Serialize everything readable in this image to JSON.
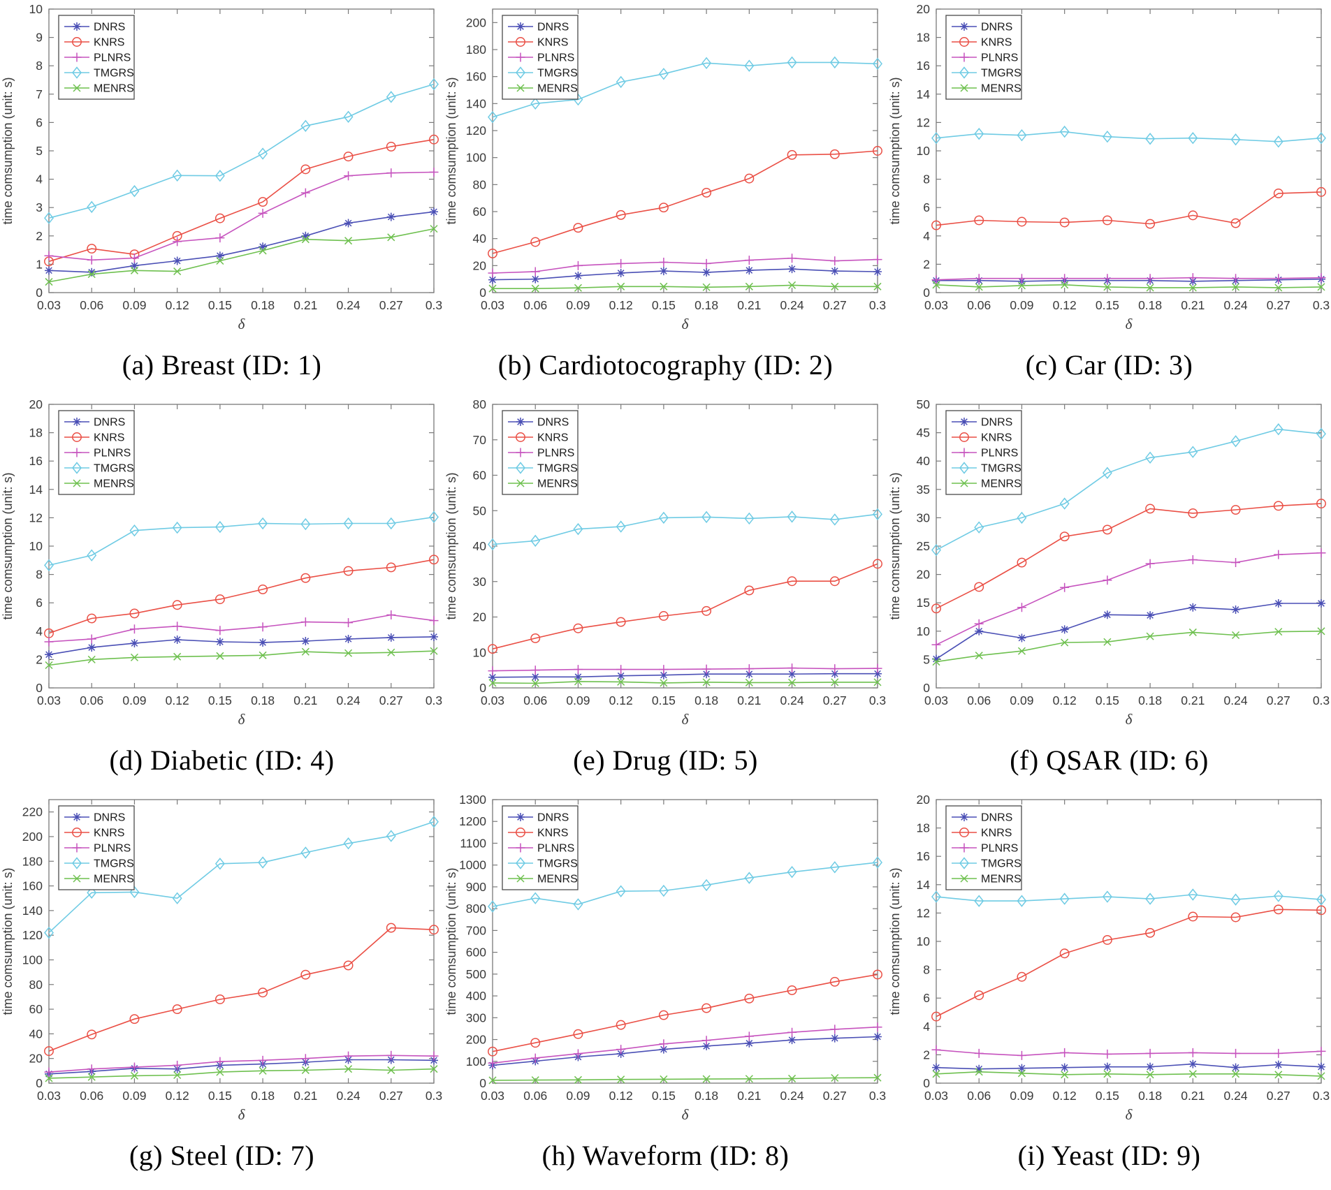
{
  "figure": {
    "xlabel": "δ",
    "ylabel": "time comsumption (unit: s)",
    "x": [
      0.03,
      0.06,
      0.09,
      0.12,
      0.15,
      0.18,
      0.21,
      0.24,
      0.27,
      0.3
    ],
    "x_ticklabels": [
      "0.03",
      "0.06",
      "0.09",
      "0.12",
      "0.15",
      "0.18",
      "0.21",
      "0.24",
      "0.27",
      "0.3"
    ],
    "legend": [
      "DNRS",
      "KNRS",
      "PLNRS",
      "TMGRS",
      "MENRS"
    ],
    "legend_position": "top-left",
    "colors": {
      "DNRS": "#4a4fb5",
      "KNRS": "#ea4f45",
      "PLNRS": "#c653be",
      "TMGRS": "#6fcbe4",
      "MENRS": "#6ec04f"
    },
    "markers": {
      "DNRS": "asterisk",
      "KNRS": "circle",
      "PLNRS": "plus",
      "TMGRS": "diamond",
      "MENRS": "x"
    },
    "frame_color": "#7a7a7a",
    "text_color": "#3a3a3a",
    "grid": "off"
  },
  "chart_data": [
    {
      "type": "line",
      "caption": "(a) Breast (ID: 1)",
      "ymax": 10,
      "ystep": 1,
      "series": [
        {
          "name": "DNRS",
          "values": [
            0.78,
            0.72,
            0.95,
            1.12,
            1.3,
            1.62,
            2.0,
            2.45,
            2.67,
            2.85
          ]
        },
        {
          "name": "KNRS",
          "values": [
            1.1,
            1.55,
            1.35,
            2.0,
            2.62,
            3.2,
            4.35,
            4.8,
            5.15,
            5.4
          ]
        },
        {
          "name": "PLNRS",
          "values": [
            1.3,
            1.15,
            1.22,
            1.8,
            1.93,
            2.8,
            3.52,
            4.12,
            4.22,
            4.25
          ]
        },
        {
          "name": "TMGRS",
          "values": [
            2.63,
            3.02,
            3.58,
            4.13,
            4.12,
            4.9,
            5.88,
            6.2,
            6.9,
            7.35
          ]
        },
        {
          "name": "MENRS",
          "values": [
            0.38,
            0.65,
            0.78,
            0.75,
            1.12,
            1.48,
            1.88,
            1.83,
            1.95,
            2.25
          ]
        }
      ]
    },
    {
      "type": "line",
      "caption": "(b) Cardiotocography (ID: 2)",
      "ymax": 210,
      "ystep": 20,
      "series": [
        {
          "name": "DNRS",
          "values": [
            9.5,
            10,
            12.5,
            14.5,
            16,
            15,
            16.5,
            17.5,
            16,
            15.5
          ]
        },
        {
          "name": "KNRS",
          "values": [
            29,
            37.5,
            48,
            57.5,
            63,
            74,
            84.5,
            102,
            102.5,
            105
          ]
        },
        {
          "name": "PLNRS",
          "values": [
            14.5,
            15.5,
            20,
            21.5,
            22.5,
            21.5,
            24,
            25.5,
            23.5,
            24.5
          ]
        },
        {
          "name": "TMGRS",
          "values": [
            130,
            140,
            143,
            156,
            162,
            170,
            168,
            170.5,
            170.5,
            169.5
          ]
        },
        {
          "name": "MENRS",
          "values": [
            3,
            3,
            3.5,
            4.5,
            4.5,
            4,
            4.5,
            5.5,
            4.5,
            4.5
          ]
        }
      ]
    },
    {
      "type": "line",
      "caption": "(c) Car (ID: 3)",
      "ymax": 20,
      "ystep": 2,
      "series": [
        {
          "name": "DNRS",
          "values": [
            0.85,
            0.85,
            0.8,
            0.85,
            0.85,
            0.85,
            0.8,
            0.85,
            0.9,
            0.95
          ]
        },
        {
          "name": "KNRS",
          "values": [
            4.75,
            5.1,
            5.0,
            4.95,
            5.1,
            4.85,
            5.45,
            4.9,
            7.0,
            7.1
          ]
        },
        {
          "name": "PLNRS",
          "values": [
            0.9,
            1.0,
            1.0,
            1.0,
            1.0,
            1.0,
            1.05,
            1.0,
            1.0,
            1.05
          ]
        },
        {
          "name": "TMGRS",
          "values": [
            10.9,
            11.2,
            11.1,
            11.35,
            11.0,
            10.85,
            10.9,
            10.8,
            10.65,
            10.9
          ]
        },
        {
          "name": "MENRS",
          "values": [
            0.55,
            0.4,
            0.5,
            0.55,
            0.4,
            0.35,
            0.35,
            0.4,
            0.35,
            0.4
          ]
        }
      ]
    },
    {
      "type": "line",
      "caption": "(d) Diabetic (ID: 4)",
      "ymax": 20,
      "ystep": 2,
      "series": [
        {
          "name": "DNRS",
          "values": [
            2.35,
            2.85,
            3.15,
            3.4,
            3.25,
            3.2,
            3.3,
            3.45,
            3.55,
            3.6
          ]
        },
        {
          "name": "KNRS",
          "values": [
            3.85,
            4.9,
            5.25,
            5.85,
            6.25,
            6.95,
            7.75,
            8.25,
            8.5,
            9.05
          ]
        },
        {
          "name": "PLNRS",
          "values": [
            3.25,
            3.45,
            4.15,
            4.35,
            4.05,
            4.3,
            4.65,
            4.6,
            5.15,
            4.75
          ]
        },
        {
          "name": "TMGRS",
          "values": [
            8.65,
            9.35,
            11.1,
            11.3,
            11.35,
            11.6,
            11.55,
            11.6,
            11.6,
            12.05
          ]
        },
        {
          "name": "MENRS",
          "values": [
            1.6,
            2.0,
            2.15,
            2.2,
            2.25,
            2.3,
            2.55,
            2.45,
            2.5,
            2.6
          ]
        }
      ]
    },
    {
      "type": "line",
      "caption": "(e) Drug (ID: 5)",
      "ymax": 80,
      "ystep": 10,
      "series": [
        {
          "name": "DNRS",
          "values": [
            3.0,
            3.1,
            3.1,
            3.4,
            3.6,
            3.9,
            3.9,
            3.9,
            4.0,
            4.0
          ]
        },
        {
          "name": "KNRS",
          "values": [
            11,
            14,
            16.8,
            18.6,
            20.3,
            21.7,
            27.5,
            30.1,
            30.1,
            35
          ]
        },
        {
          "name": "PLNRS",
          "values": [
            4.8,
            5.0,
            5.2,
            5.2,
            5.2,
            5.3,
            5.4,
            5.6,
            5.4,
            5.5
          ]
        },
        {
          "name": "TMGRS",
          "values": [
            40.5,
            41.5,
            44.8,
            45.5,
            48.0,
            48.2,
            47.8,
            48.3,
            47.5,
            49.0
          ]
        },
        {
          "name": "MENRS",
          "values": [
            1.4,
            1.3,
            1.8,
            1.7,
            1.4,
            1.6,
            1.5,
            1.5,
            1.6,
            1.6
          ]
        }
      ]
    },
    {
      "type": "line",
      "caption": "(f) QSAR (ID: 6)",
      "ymax": 50,
      "ystep": 5,
      "series": [
        {
          "name": "DNRS",
          "values": [
            5.1,
            10.0,
            8.8,
            10.3,
            12.9,
            12.8,
            14.2,
            13.8,
            14.9,
            14.9
          ]
        },
        {
          "name": "KNRS",
          "values": [
            14.0,
            17.8,
            22.1,
            26.7,
            27.9,
            31.6,
            30.8,
            31.4,
            32.1,
            32.5
          ]
        },
        {
          "name": "PLNRS",
          "values": [
            7.6,
            11.3,
            14.2,
            17.7,
            19.0,
            21.9,
            22.6,
            22.1,
            23.5,
            23.8
          ]
        },
        {
          "name": "TMGRS",
          "values": [
            24.3,
            28.3,
            30.0,
            32.5,
            37.9,
            40.6,
            41.6,
            43.5,
            45.6,
            44.8
          ]
        },
        {
          "name": "MENRS",
          "values": [
            4.6,
            5.7,
            6.5,
            8.0,
            8.1,
            9.1,
            9.8,
            9.3,
            9.9,
            10.0
          ]
        }
      ]
    },
    {
      "type": "line",
      "caption": "(g) Steel (ID: 7)",
      "ymax": 230,
      "ystep": 20,
      "series": [
        {
          "name": "DNRS",
          "values": [
            7.5,
            9.5,
            12,
            11.5,
            14.5,
            15.5,
            17,
            19,
            19,
            18.5
          ]
        },
        {
          "name": "KNRS",
          "values": [
            26,
            39.5,
            52,
            60,
            68,
            73.5,
            88,
            95.5,
            126,
            124.5
          ]
        },
        {
          "name": "PLNRS",
          "values": [
            9,
            11.5,
            13,
            14.5,
            17.5,
            18.5,
            20,
            22,
            22.5,
            22
          ]
        },
        {
          "name": "TMGRS",
          "values": [
            122,
            154.5,
            155,
            150,
            178,
            179,
            187,
            194.5,
            200.5,
            212
          ]
        },
        {
          "name": "MENRS",
          "values": [
            4,
            5,
            6,
            6.5,
            9,
            10,
            10.5,
            11.5,
            10.5,
            11.5
          ]
        }
      ]
    },
    {
      "type": "line",
      "caption": "(h) Waveform (ID: 8)",
      "ymax": 1300,
      "ystep": 100,
      "series": [
        {
          "name": "DNRS",
          "values": [
            82,
            101,
            120,
            135,
            155,
            170,
            183,
            198,
            206,
            213
          ]
        },
        {
          "name": "KNRS",
          "values": [
            145,
            185,
            225,
            267,
            312,
            344,
            388,
            426,
            465,
            498
          ]
        },
        {
          "name": "PLNRS",
          "values": [
            92,
            115,
            135,
            155,
            180,
            196,
            215,
            233,
            247,
            257
          ]
        },
        {
          "name": "TMGRS",
          "values": [
            810,
            848,
            820,
            880,
            882,
            908,
            941,
            968,
            990,
            1012
          ]
        },
        {
          "name": "MENRS",
          "values": [
            13,
            14,
            15,
            17,
            18,
            19,
            20,
            21,
            24,
            25
          ]
        }
      ]
    },
    {
      "type": "line",
      "caption": "(i) Yeast (ID: 9)",
      "ymax": 20,
      "ystep": 2,
      "series": [
        {
          "name": "DNRS",
          "values": [
            1.1,
            1.0,
            1.05,
            1.1,
            1.15,
            1.15,
            1.35,
            1.1,
            1.3,
            1.15
          ]
        },
        {
          "name": "KNRS",
          "values": [
            4.7,
            6.2,
            7.5,
            9.15,
            10.1,
            10.6,
            11.75,
            11.7,
            12.25,
            12.2
          ]
        },
        {
          "name": "PLNRS",
          "values": [
            2.35,
            2.1,
            1.95,
            2.15,
            2.05,
            2.1,
            2.15,
            2.1,
            2.1,
            2.25
          ]
        },
        {
          "name": "TMGRS",
          "values": [
            13.15,
            12.85,
            12.85,
            13.0,
            13.15,
            13.0,
            13.3,
            12.95,
            13.2,
            12.95
          ]
        },
        {
          "name": "MENRS",
          "values": [
            0.65,
            0.8,
            0.7,
            0.6,
            0.65,
            0.6,
            0.65,
            0.65,
            0.6,
            0.5
          ]
        }
      ]
    }
  ]
}
